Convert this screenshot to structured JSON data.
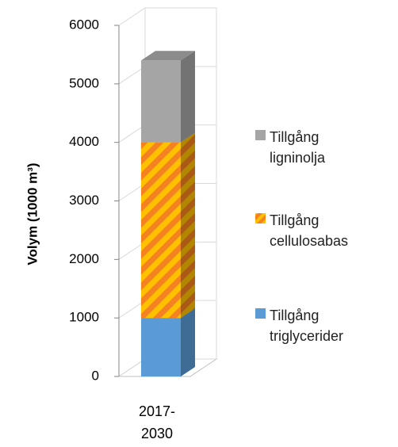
{
  "chart_data": {
    "type": "bar3d_stacked",
    "y_label": "Volym (1000 m³)",
    "categories": [
      "2017-2030"
    ],
    "series": [
      {
        "name": "Tillgång triglycerider",
        "color": "#5b9bd5",
        "values": [
          1000
        ]
      },
      {
        "name": "Tillgång cellulosabas",
        "color": "#ffc000",
        "hatch_color": "#f58220",
        "values": [
          3000
        ]
      },
      {
        "name": "Tillgång ligninolja",
        "color": "#a5a5a5",
        "values": [
          1400
        ]
      }
    ],
    "ylim": [
      0,
      6000
    ],
    "yticks": [
      0,
      1000,
      2000,
      3000,
      4000,
      5000,
      6000
    ],
    "grid": true
  }
}
